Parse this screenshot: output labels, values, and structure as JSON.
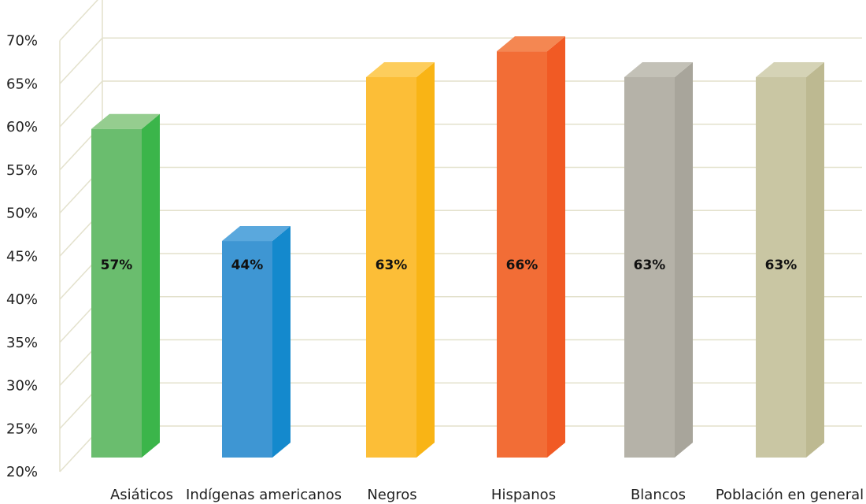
{
  "chart_data": {
    "type": "bar",
    "categories": [
      "Asiáticos",
      "Indígenas americanos",
      "Negros",
      "Hispanos",
      "Blancos",
      "Población en general"
    ],
    "values": [
      57,
      44,
      63,
      66,
      63,
      63
    ],
    "value_labels": [
      "57%",
      "44%",
      "63%",
      "66%",
      "63%",
      "63%"
    ],
    "y_ticks": [
      20,
      25,
      30,
      35,
      40,
      45,
      50,
      55,
      60,
      65,
      70
    ],
    "y_tick_labels": [
      "20%",
      "25%",
      "30%",
      "35%",
      "40%",
      "45%",
      "50%",
      "55%",
      "60%",
      "65%",
      "70%"
    ],
    "ylim": [
      20,
      70
    ],
    "grid": true,
    "style": "3d",
    "title": "",
    "xlabel": "",
    "ylabel": "",
    "bar_colors": [
      {
        "front": "#6abd6e",
        "side": "#3bb54a",
        "top": "#95cd8f"
      },
      {
        "front": "#3e96d3",
        "side": "#1489cd",
        "top": "#5aa8dd"
      },
      {
        "front": "#fcbe37",
        "side": "#f9b415",
        "top": "#fdcd5c"
      },
      {
        "front": "#f26d36",
        "side": "#f15a24",
        "top": "#f48752"
      },
      {
        "front": "#b5b2a8",
        "side": "#a8a59b",
        "top": "#c3c1b7"
      },
      {
        "front": "#c9c6a3",
        "side": "#bdb991",
        "top": "#d5d3b6"
      }
    ],
    "grid_color": "#e3e1cc"
  }
}
